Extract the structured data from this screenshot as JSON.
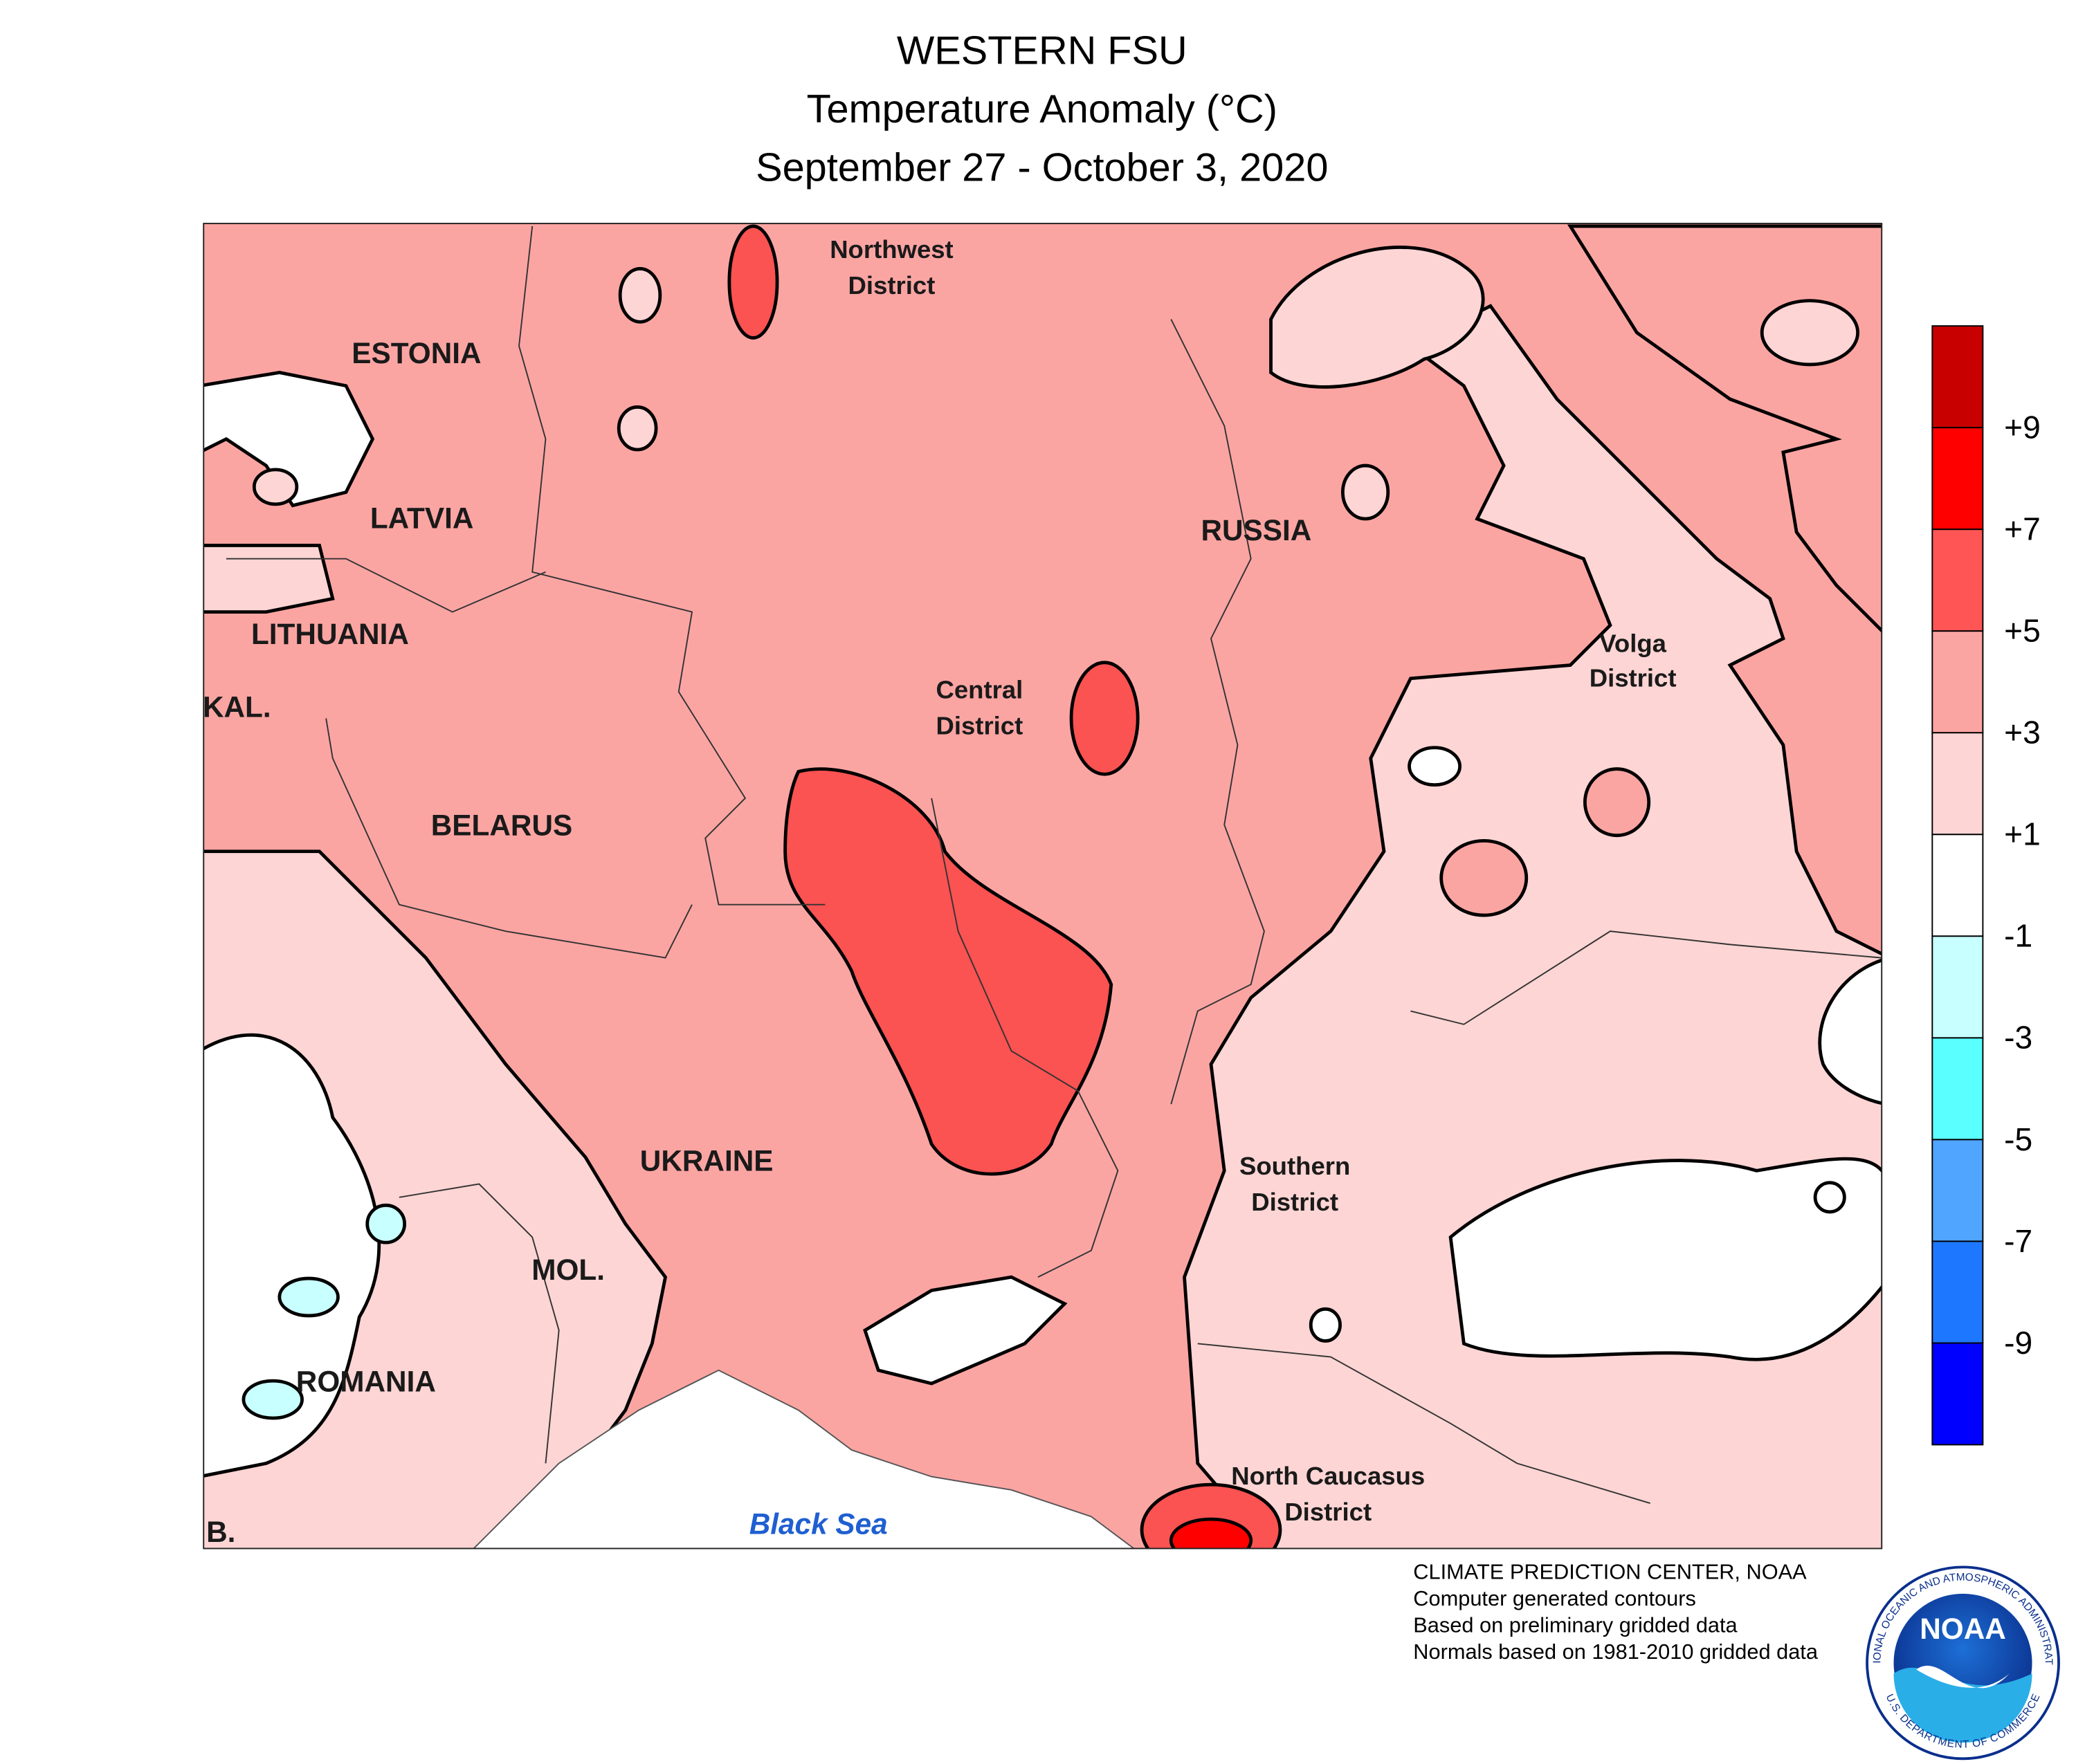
{
  "title": {
    "region": "WESTERN FSU",
    "variable": "Temperature Anomaly (°C)",
    "dates": "September 27 - October 3, 2020"
  },
  "map": {
    "countries": [
      "ESTONIA",
      "LATVIA",
      "LITHUANIA",
      "KAL.",
      "BELARUS",
      "UKRAINE",
      "MOL.",
      "ROMANIA",
      "B.",
      "RUSSIA"
    ],
    "districts": [
      [
        "Northwest",
        "District"
      ],
      [
        "Central",
        "District"
      ],
      [
        "Volga",
        "District"
      ],
      [
        "Southern",
        "District"
      ],
      [
        "North Caucasus",
        "District"
      ]
    ],
    "sea": "Black Sea"
  },
  "legend": {
    "colors": [
      "#c80000",
      "#ff0000",
      "#ff5555",
      "#fba5a3",
      "#fdd5d4",
      "#ffffff",
      "#c8ffff",
      "#5affff",
      "#50a5ff",
      "#1e78ff",
      "#0000ff"
    ],
    "labels": [
      "+9",
      "+7",
      "+5",
      "+3",
      "+1",
      "-1",
      "-3",
      "-5",
      "-7",
      "-9"
    ]
  },
  "credits": [
    "CLIMATE PREDICTION CENTER, NOAA",
    "Computer generated contours",
    "Based on preliminary gridded data",
    "Normals based on 1981-2010 gridded data"
  ],
  "logo": {
    "name": "NOAA",
    "ring_top": "NATIONAL OCEANIC AND ATMOSPHERIC ADMINISTRATION",
    "ring_bottom": "U.S. DEPARTMENT OF COMMERCE"
  }
}
